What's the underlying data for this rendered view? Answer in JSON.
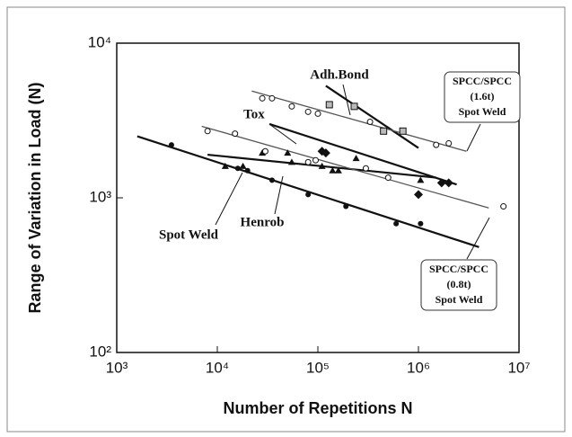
{
  "chart_data": {
    "type": "scatter",
    "x_label": "Number of Repetitions N",
    "y_label": "Range of Variation in Load (N)",
    "log_x": true,
    "log_y": true,
    "xlim": [
      1000,
      10000000
    ],
    "ylim": [
      100,
      10000
    ],
    "xticks": [
      {
        "value": 1000,
        "label": "10³"
      },
      {
        "value": 10000,
        "label": "10⁴"
      },
      {
        "value": 100000,
        "label": "10⁵"
      },
      {
        "value": 1000000,
        "label": "10⁶"
      },
      {
        "value": 10000000,
        "label": "10⁷"
      }
    ],
    "yticks": [
      {
        "value": 100,
        "label": "10²"
      },
      {
        "value": 1000,
        "label": "10³"
      },
      {
        "value": 10000,
        "label": "10⁴"
      }
    ],
    "series": [
      {
        "marker": "filled-circle",
        "color": "#111111",
        "x": [
          3500,
          16000,
          20000,
          35000,
          80000,
          190000,
          600000,
          1050000
        ],
        "values": [
          2200,
          1550,
          1500,
          1300,
          1050,
          880,
          680,
          680
        ]
      },
      {
        "marker": "filled-triangle",
        "color": "#111111",
        "x": [
          12000,
          18000,
          28000,
          50000,
          55000,
          110000,
          140000,
          160000,
          240000,
          1050000
        ],
        "values": [
          1600,
          1600,
          1950,
          1950,
          1700,
          1600,
          1500,
          1500,
          1800,
          1300
        ]
      },
      {
        "marker": "filled-diamond",
        "color": "#111111",
        "x": [
          110000,
          120000,
          1000000,
          1700000,
          2000000
        ],
        "values": [
          2000,
          1950,
          1050,
          1250,
          1250
        ]
      },
      {
        "marker": "open-square",
        "color": "#111111",
        "x": [
          130000,
          230000,
          450000,
          700000
        ],
        "values": [
          4000,
          3900,
          2700,
          2700
        ]
      },
      {
        "marker": "open-circle",
        "color": "#111111",
        "x": [
          28000,
          35000,
          55000,
          80000,
          100000,
          330000,
          1500000,
          2000000
        ],
        "values": [
          4400,
          4400,
          3900,
          3600,
          3500,
          3100,
          2200,
          2250
        ]
      },
      {
        "marker": "open-circle",
        "color": "#111111",
        "x": [
          8000,
          15000,
          30000,
          80000,
          95000,
          300000,
          500000,
          7000000
        ],
        "values": [
          2700,
          2600,
          2000,
          1700,
          1750,
          1550,
          1350,
          880
        ]
      }
    ],
    "fits": [
      {
        "color": "#111111",
        "x": [
          1600,
          4000000
        ],
        "values": [
          2500,
          480
        ]
      },
      {
        "color": "#111111",
        "x": [
          8000,
          1500000
        ],
        "values": [
          1900,
          1350
        ]
      },
      {
        "color": "#111111",
        "x": [
          33000,
          2400000
        ],
        "values": [
          3000,
          1220
        ]
      },
      {
        "color": "#111111",
        "x": [
          120000,
          1000000
        ],
        "values": [
          5300,
          2100
        ]
      },
      {
        "color": "#555555",
        "x": [
          22000,
          3000000
        ],
        "values": [
          4900,
          2000
        ]
      },
      {
        "color": "#555555",
        "x": [
          7000,
          5000000
        ],
        "values": [
          2900,
          860
        ]
      }
    ],
    "annotations": [
      "Adh.Bond",
      "Tox",
      "Spot Weld",
      "Henrob"
    ],
    "boxed_annotations": [
      [
        "SPCC/SPCC",
        "(1.6t)",
        "Spot Weld"
      ],
      [
        "SPCC/SPCC",
        "(0.8t)",
        "Spot Weld"
      ]
    ]
  }
}
